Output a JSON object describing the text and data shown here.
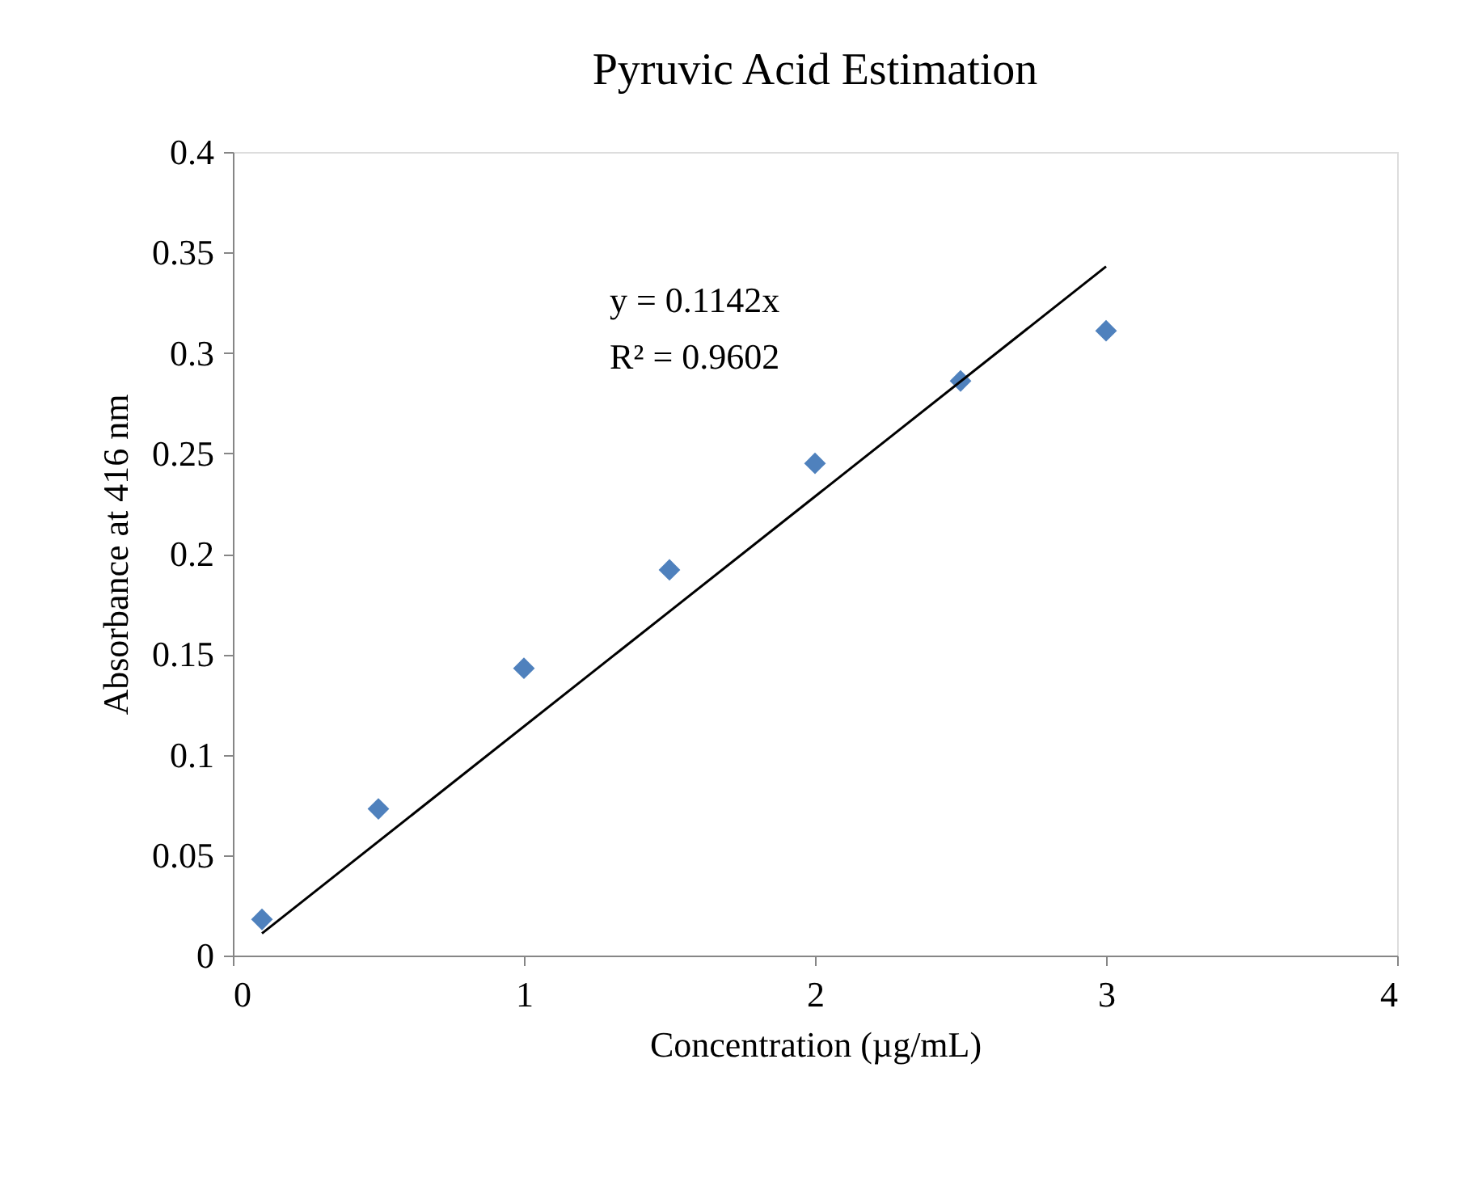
{
  "chart_data": {
    "type": "scatter",
    "title": "Pyruvic Acid Estimation",
    "xlabel": "Concentration (µg/mL)",
    "ylabel": "Absorbance at 416 nm",
    "x": [
      0.1,
      0.5,
      1,
      1.5,
      2,
      2.5,
      3
    ],
    "series": [
      {
        "color": "#4f81bd",
        "marker": "diamond",
        "values": [
          0.018,
          0.073,
          0.143,
          0.192,
          0.245,
          0.286,
          0.311
        ]
      },
      {
        "type": "line",
        "color": "#000000",
        "line_style": "solid",
        "marker": "none",
        "x": [
          0.1,
          3
        ],
        "values": [
          0.011,
          0.343
        ]
      }
    ],
    "annotations": [
      "y = 0.1142x",
      "R² = 0.9602"
    ],
    "xlim": [
      0,
      4
    ],
    "xticks": [
      0,
      1,
      2,
      3,
      4
    ],
    "ylim": [
      0,
      0.4
    ],
    "yticks": [
      0,
      0.05,
      0.1,
      0.15,
      0.2,
      0.25,
      0.3,
      0.35,
      0.4
    ],
    "grid": false
  }
}
